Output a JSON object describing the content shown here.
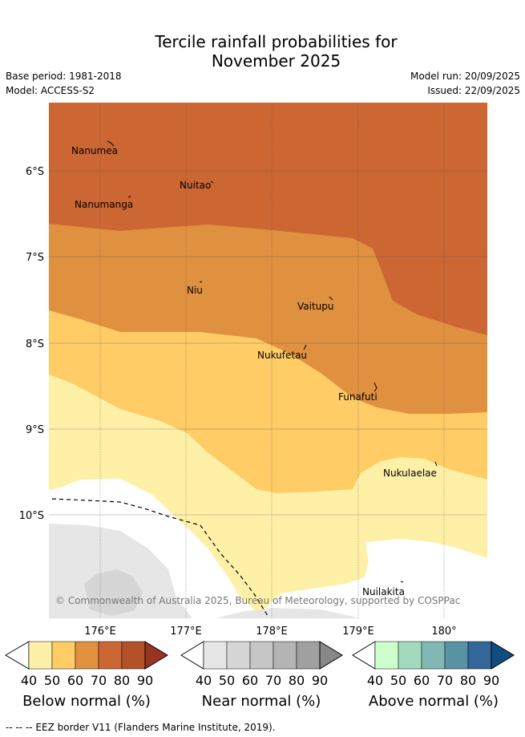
{
  "title_line1": "Tercile rainfall probabilities for",
  "title_line2": "November 2025",
  "base_period": "Base period: 1981-2018",
  "model": "Model: ACCESS-S2",
  "model_run": "Model run: 20/09/2025",
  "issued": "Issued: 22/09/2025",
  "lat_labels": [
    "6°S",
    "7°S",
    "8°S",
    "9°S",
    "10°S"
  ],
  "lon_labels": [
    "176°E",
    "177°E",
    "178°E",
    "179°E",
    "180°"
  ],
  "places": [
    {
      "name": "Nanumea"
    },
    {
      "name": "Nuitao"
    },
    {
      "name": "Nanumanga"
    },
    {
      "name": "Niu"
    },
    {
      "name": "Vaitupu"
    },
    {
      "name": "Nukufetau"
    },
    {
      "name": "Funafuti"
    },
    {
      "name": "Nukulaelae"
    },
    {
      "name": "Nuilakita"
    }
  ],
  "copyright": "© Commonwealth of Australia 2025, Bureau of Meteorology, supported by COSPPac",
  "colorbars": [
    {
      "title": "Below normal (%)",
      "ticks": [
        "40",
        "50",
        "60",
        "70",
        "80",
        "90"
      ],
      "colors": [
        "#ffffff",
        "#fff0a8",
        "#ffcc66",
        "#e0913f",
        "#cc6633",
        "#b35229",
        "#993322"
      ]
    },
    {
      "title": "Near normal (%)",
      "ticks": [
        "40",
        "50",
        "60",
        "70",
        "80",
        "90"
      ],
      "colors": [
        "#ffffff",
        "#e6e6e6",
        "#d6d6d6",
        "#c6c6c6",
        "#b4b4b4",
        "#a0a0a0",
        "#888888"
      ]
    },
    {
      "title": "Above normal (%)",
      "ticks": [
        "40",
        "50",
        "60",
        "70",
        "80",
        "90"
      ],
      "colors": [
        "#ffffff",
        "#ccffcc",
        "#a3d9be",
        "#82b8b4",
        "#5893a3",
        "#336699",
        "#134d80"
      ]
    }
  ],
  "footnote": "--  --  -- EEZ border V11 (Flanders Marine Institute, 2019)."
}
